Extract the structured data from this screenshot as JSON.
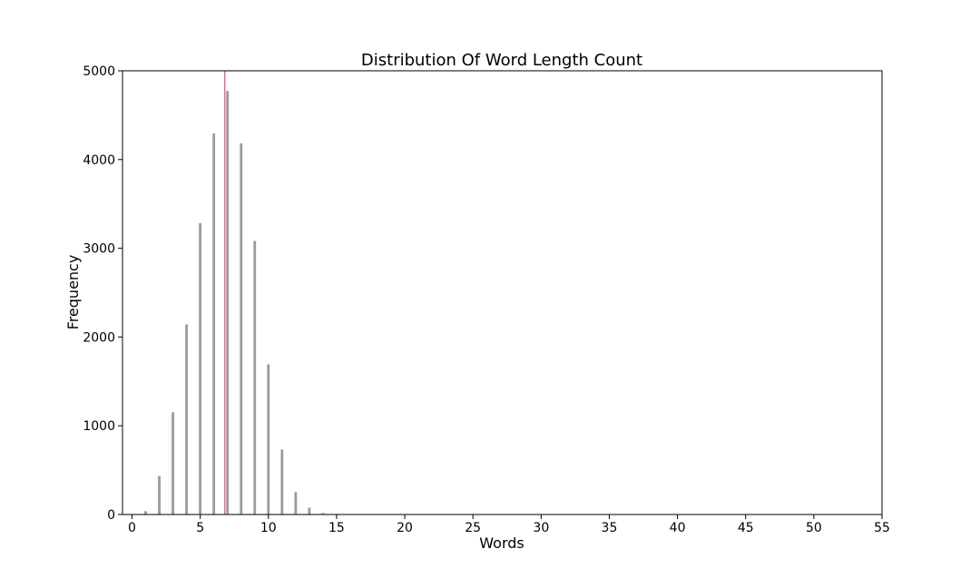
{
  "chart_data": {
    "type": "bar",
    "title": "Distribution Of Word Length Count",
    "xlabel": "Words",
    "ylabel": "Frequency",
    "xlim": [
      -0.7,
      55
    ],
    "ylim": [
      0,
      5000
    ],
    "xticks": [
      0,
      5,
      10,
      15,
      20,
      25,
      30,
      35,
      40,
      45,
      50,
      55
    ],
    "yticks": [
      0,
      1000,
      2000,
      3000,
      4000,
      5000
    ],
    "bars": [
      {
        "x": 1,
        "y": 35
      },
      {
        "x": 2,
        "y": 430
      },
      {
        "x": 3,
        "y": 1150
      },
      {
        "x": 4,
        "y": 2140
      },
      {
        "x": 5,
        "y": 3280
      },
      {
        "x": 6,
        "y": 4290
      },
      {
        "x": 7,
        "y": 4770
      },
      {
        "x": 8,
        "y": 4180
      },
      {
        "x": 9,
        "y": 3080
      },
      {
        "x": 10,
        "y": 1690
      },
      {
        "x": 11,
        "y": 730
      },
      {
        "x": 12,
        "y": 250
      },
      {
        "x": 13,
        "y": 75
      },
      {
        "x": 14,
        "y": 15
      },
      {
        "x": 15,
        "y": 4
      }
    ],
    "reference_line": {
      "x": 6.8
    },
    "colors": {
      "bar": "#9e9e9e",
      "bar_edge": "#7a7a7a",
      "reference_line": "#d9738f",
      "axis": "#000000"
    },
    "grid": false,
    "legend": "none"
  }
}
